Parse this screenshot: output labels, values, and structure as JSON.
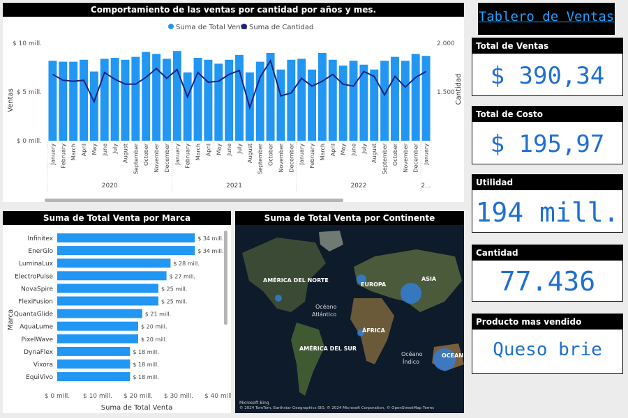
{
  "dashboard_title": "Tablero de Ventas",
  "colors": {
    "bar": "#2196f3",
    "line": "#1a237e",
    "kpi": "#1f6fd1",
    "header_bg": "#000000"
  },
  "kpis": [
    {
      "label": "Total de Ventas",
      "value": "$ 390,34 ..."
    },
    {
      "label": "Total de Costo",
      "value": "$ 195,97 ..."
    },
    {
      "label": "Utilidad",
      "value": "194 mill."
    },
    {
      "label": "Cantidad",
      "value": "77.436"
    },
    {
      "label": "Producto mas vendido",
      "value": "Queso brie"
    }
  ],
  "chart_data": [
    {
      "type": "bar",
      "title": "Comportamiento de las ventas por cantidad por años y mes.",
      "legend": [
        "Suma de Total Venta",
        "Suma de Cantidad"
      ],
      "legend_position": "top-center",
      "ylabel": "Ventas",
      "y2label": "Cantidad",
      "y_ticks": [
        "$ 0 mill.",
        "$ 5 mill.",
        "$ 10 mill."
      ],
      "y2_ticks": [
        "1.500",
        "2.000"
      ],
      "ylim": [
        0,
        10000000
      ],
      "y2lim": [
        1000,
        2000
      ],
      "categories": [
        "January",
        "February",
        "March",
        "April",
        "May",
        "June",
        "July",
        "August",
        "September",
        "October",
        "November",
        "December",
        "January",
        "February",
        "March",
        "April",
        "May",
        "June",
        "July",
        "August",
        "September",
        "October",
        "November",
        "December",
        "January",
        "February",
        "March",
        "April",
        "May",
        "June",
        "July",
        "August",
        "September",
        "October",
        "November",
        "December",
        "January"
      ],
      "years": [
        {
          "label": "2020",
          "start": 0,
          "count": 12
        },
        {
          "label": "2021",
          "start": 12,
          "count": 12
        },
        {
          "label": "2022",
          "start": 24,
          "count": 12
        },
        {
          "label": "2...",
          "start": 36,
          "count": 1
        }
      ],
      "series": [
        {
          "name": "Suma de Total Venta",
          "type": "bar",
          "values": [
            8200000,
            8100000,
            8100000,
            8300000,
            7100000,
            8400000,
            8500000,
            8300000,
            8600000,
            9100000,
            8900000,
            8400000,
            9200000,
            7000000,
            8500000,
            8300000,
            7900000,
            8300000,
            8800000,
            7000000,
            8100000,
            9000000,
            7300000,
            8300000,
            8400000,
            7300000,
            9000000,
            8300000,
            7700000,
            8200000,
            7800000,
            7300000,
            8200000,
            8600000,
            8200000,
            8900000,
            8700000
          ]
        },
        {
          "name": "Suma de Cantidad",
          "type": "line",
          "values": [
            1680,
            1620,
            1610,
            1620,
            1400,
            1700,
            1630,
            1580,
            1580,
            1650,
            1740,
            1640,
            1730,
            1450,
            1700,
            1600,
            1610,
            1680,
            1720,
            1340,
            1650,
            1820,
            1460,
            1490,
            1640,
            1560,
            1610,
            1680,
            1580,
            1560,
            1710,
            1660,
            1470,
            1660,
            1550,
            1650,
            1710
          ]
        }
      ]
    },
    {
      "type": "bar",
      "orientation": "horizontal",
      "title": "Suma de Total Venta por Marca",
      "xlabel": "Suma de Total Venta",
      "ylabel": "Marca",
      "x_ticks": [
        "$ 0 mill.",
        "$ 10 mill.",
        "$ 20 mill.",
        "$ 30 mill.",
        "$ 40 mill."
      ],
      "xlim": [
        0,
        40000000
      ],
      "categories": [
        "Infinitex",
        "EnerGlo",
        "LuminaLux",
        "ElectroPulse",
        "NovaSpire",
        "FlexiFusion",
        "QuantaGlide",
        "AquaLume",
        "PixelWave",
        "DynaFlex",
        "Vixora",
        "EquiVivo"
      ],
      "values": [
        34000000,
        34000000,
        28000000,
        27000000,
        25000000,
        25000000,
        21000000,
        20000000,
        20000000,
        18000000,
        18000000,
        18000000
      ],
      "value_labels": [
        "$ 34 mill.",
        "$ 34 mill.",
        "$ 28 mill.",
        "$ 27 mill.",
        "$ 25 mill.",
        "$ 25 mill.",
        "$ 21 mill.",
        "$ 20 mill.",
        "$ 20 mill.",
        "$ 18 mill.",
        "$ 18 mill.",
        "$ 18 mill."
      ]
    }
  ],
  "map": {
    "title": "Suma de Total Venta por Continente",
    "labels": {
      "north_america": "AMÉRICA DEL NORTE",
      "south_america": "AMÉRICA DEL SUR",
      "europe": "EUROPA",
      "asia": "ASIA",
      "africa": "ÁFRICA",
      "atlantic_1": "Océano",
      "atlantic_2": "Atlántico",
      "indian_1": "Océano",
      "indian_2": "Índico",
      "oceania_partial": "OCEAN"
    },
    "footer": "© 2024 TomTom, Earthstar Geographics SIO, © 2024 Microsoft Corporation, © OpenStreetMap  Terms",
    "brand": "Microsoft Bing"
  }
}
